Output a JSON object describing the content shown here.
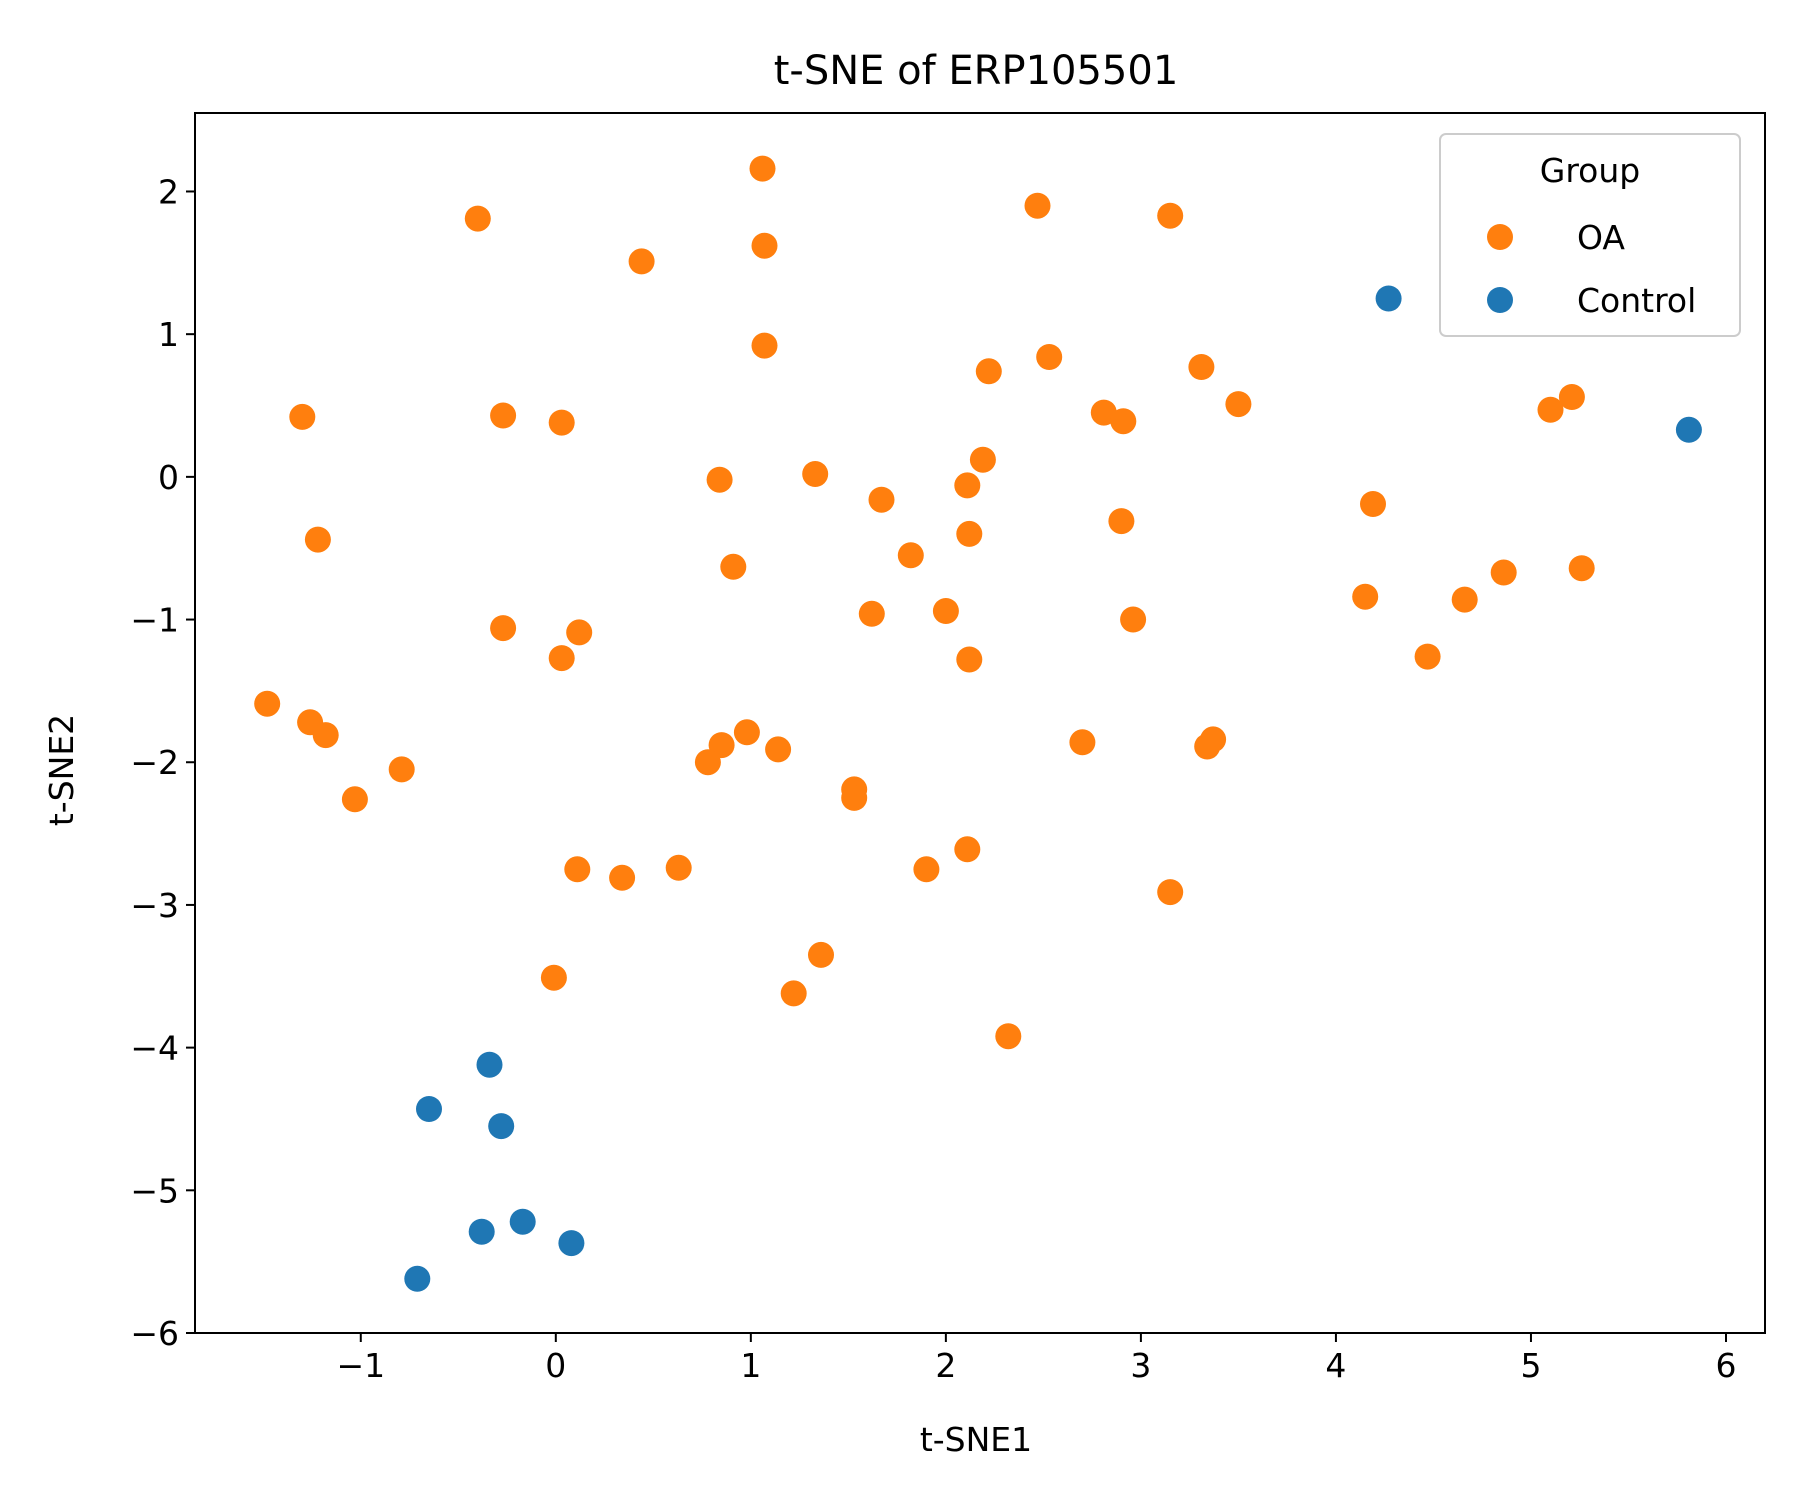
{
  "chart_data": {
    "type": "scatter",
    "title": "t-SNE of ERP105501",
    "xlabel": "t-SNE1",
    "ylabel": "t-SNE2",
    "xlim": [
      -1.85,
      6.2
    ],
    "ylim": [
      -6.0,
      2.55
    ],
    "xticks": [
      -1,
      0,
      1,
      2,
      3,
      4,
      5,
      6
    ],
    "yticks": [
      -6,
      -5,
      -4,
      -3,
      -2,
      -1,
      0,
      1,
      2
    ],
    "xtick_labels": [
      "−1",
      "0",
      "1",
      "2",
      "3",
      "4",
      "5",
      "6"
    ],
    "ytick_labels": [
      "−6",
      "−5",
      "−4",
      "−3",
      "−2",
      "−1",
      "0",
      "1",
      "2"
    ],
    "grid": false,
    "legend": {
      "title": "Group",
      "placement": "top-right"
    },
    "series": [
      {
        "name": "OA",
        "color": "#ff7f0e",
        "points": [
          [
            1.06,
            2.16
          ],
          [
            2.47,
            1.9
          ],
          [
            3.15,
            1.83
          ],
          [
            -0.4,
            1.81
          ],
          [
            0.44,
            1.51
          ],
          [
            1.07,
            1.62
          ],
          [
            1.07,
            0.92
          ],
          [
            2.53,
            0.84
          ],
          [
            2.22,
            0.74
          ],
          [
            3.31,
            0.77
          ],
          [
            3.5,
            0.51
          ],
          [
            2.81,
            0.45
          ],
          [
            2.91,
            0.39
          ],
          [
            5.21,
            0.56
          ],
          [
            5.1,
            0.47
          ],
          [
            -1.3,
            0.42
          ],
          [
            -0.27,
            0.43
          ],
          [
            0.03,
            0.38
          ],
          [
            0.84,
            -0.02
          ],
          [
            1.33,
            0.02
          ],
          [
            2.19,
            0.12
          ],
          [
            2.11,
            -0.06
          ],
          [
            1.67,
            -0.16
          ],
          [
            4.19,
            -0.19
          ],
          [
            -1.22,
            -0.44
          ],
          [
            2.12,
            -0.4
          ],
          [
            2.9,
            -0.31
          ],
          [
            1.82,
            -0.55
          ],
          [
            0.91,
            -0.63
          ],
          [
            4.86,
            -0.67
          ],
          [
            5.26,
            -0.64
          ],
          [
            4.15,
            -0.84
          ],
          [
            4.66,
            -0.86
          ],
          [
            1.62,
            -0.96
          ],
          [
            2.0,
            -0.94
          ],
          [
            2.96,
            -1.0
          ],
          [
            -0.27,
            -1.06
          ],
          [
            0.12,
            -1.09
          ],
          [
            0.03,
            -1.27
          ],
          [
            2.12,
            -1.28
          ],
          [
            4.47,
            -1.26
          ],
          [
            -1.48,
            -1.59
          ],
          [
            -1.26,
            -1.72
          ],
          [
            -1.18,
            -1.81
          ],
          [
            0.98,
            -1.79
          ],
          [
            0.85,
            -1.88
          ],
          [
            1.14,
            -1.91
          ],
          [
            0.78,
            -2.0
          ],
          [
            2.7,
            -1.86
          ],
          [
            3.37,
            -1.84
          ],
          [
            3.34,
            -1.89
          ],
          [
            -0.79,
            -2.05
          ],
          [
            -1.03,
            -2.26
          ],
          [
            1.53,
            -2.19
          ],
          [
            1.53,
            -2.25
          ],
          [
            0.11,
            -2.75
          ],
          [
            0.34,
            -2.81
          ],
          [
            0.63,
            -2.74
          ],
          [
            1.9,
            -2.75
          ],
          [
            2.11,
            -2.61
          ],
          [
            3.15,
            -2.91
          ],
          [
            -0.01,
            -3.51
          ],
          [
            1.36,
            -3.35
          ],
          [
            1.22,
            -3.62
          ],
          [
            2.32,
            -3.92
          ]
        ]
      },
      {
        "name": "Control",
        "color": "#1f77b4",
        "points": [
          [
            4.27,
            1.25
          ],
          [
            5.81,
            0.33
          ],
          [
            -0.34,
            -4.12
          ],
          [
            -0.65,
            -4.43
          ],
          [
            -0.28,
            -4.55
          ],
          [
            -0.17,
            -5.22
          ],
          [
            -0.38,
            -5.29
          ],
          [
            0.08,
            -5.37
          ],
          [
            -0.71,
            -5.62
          ]
        ]
      }
    ]
  }
}
